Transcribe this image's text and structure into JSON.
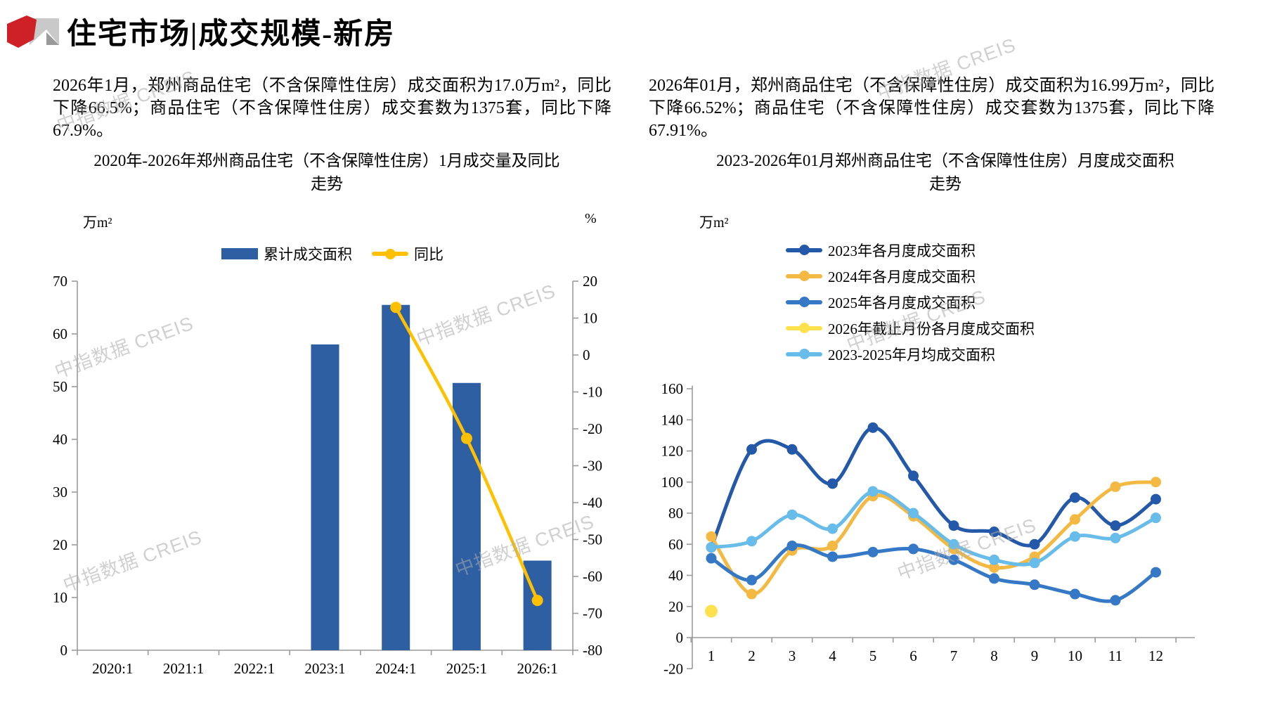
{
  "page": {
    "title": "住宅市场|成交规模-新房",
    "watermark": "中指数据 CREIS",
    "logo_colors": {
      "red": "#ce2127",
      "gray_light": "#c9c9c9",
      "gray_dark": "#9a9a9a"
    }
  },
  "summaries": {
    "left": "2026年1月，郑州商品住宅（不含保障性住房）成交面积为17.0万m²，同比下降66.5%；商品住宅（不含保障性住房）成交套数为1375套，同比下降67.9%。",
    "right": "2026年01月，郑州商品住宅（不含保障性住房）成交面积为16.99万m²，同比下降66.52%；商品住宅（不含保障性住房）成交套数为1375套，同比下降67.91%。"
  },
  "chart_data": [
    {
      "type": "bar",
      "title": "2020年-2026年郑州商品住宅（不含保障性住房）1月成交量及同比走势",
      "title_line1": "2020年-2026年郑州商品住宅（不含保障性住房）1月成交量及同比",
      "title_line2": "走势",
      "unit_left": "万m²",
      "unit_right": "%",
      "categories": [
        "2020:1",
        "2021:1",
        "2022:1",
        "2023:1",
        "2024:1",
        "2025:1",
        "2026:1"
      ],
      "series": [
        {
          "name": "累计成交面积",
          "type": "bar",
          "axis": "left",
          "color": "#2e5fa3",
          "values": [
            null,
            null,
            null,
            58.0,
            65.5,
            50.7,
            17.0
          ]
        },
        {
          "name": "同比",
          "type": "line",
          "axis": "right",
          "color": "#ffc000",
          "values": [
            null,
            null,
            null,
            null,
            12.9,
            -22.6,
            -66.5
          ]
        }
      ],
      "ylim_left": [
        0,
        70
      ],
      "yticks_left": [
        0,
        10,
        20,
        30,
        40,
        50,
        60,
        70
      ],
      "ylim_right": [
        -80,
        20
      ],
      "yticks_right": [
        20,
        10,
        0,
        -10,
        -20,
        -30,
        -40,
        -50,
        -60,
        -70,
        -80
      ],
      "grid": false,
      "legend_position": "top"
    },
    {
      "type": "line",
      "title": "2023-2026年01月郑州商品住宅（不含保障性住房）月度成交面积走势",
      "title_line1": "2023-2026年01月郑州商品住宅（不含保障性住房）月度成交面积",
      "title_line2": "走势",
      "unit": "万m²",
      "x": [
        1,
        2,
        3,
        4,
        5,
        6,
        7,
        8,
        9,
        10,
        11,
        12
      ],
      "series": [
        {
          "name": "2023年各月度成交面积",
          "color": "#2458a8",
          "values": [
            58,
            121,
            121,
            99,
            135,
            104,
            72,
            68,
            60,
            90,
            72,
            89
          ]
        },
        {
          "name": "2024年各月度成交面积",
          "color": "#f4b942",
          "values": [
            65,
            28,
            56,
            59,
            91,
            78,
            57,
            45,
            52,
            76,
            97,
            100
          ]
        },
        {
          "name": "2025年各月度成交面积",
          "color": "#3578c6",
          "values": [
            51,
            37,
            59,
            52,
            55,
            57,
            50,
            38,
            34,
            28,
            24,
            42
          ]
        },
        {
          "name": "2026年截止月份各月度成交面积",
          "color": "#ffe14e",
          "values": [
            17,
            null,
            null,
            null,
            null,
            null,
            null,
            null,
            null,
            null,
            null,
            null
          ]
        },
        {
          "name": "2023-2025年月均成交面积",
          "color": "#67bcea",
          "values": [
            58,
            62,
            79,
            70,
            94,
            80,
            60,
            50,
            48,
            65,
            64,
            77
          ]
        }
      ],
      "ylim": [
        -20,
        160
      ],
      "yticks": [
        -20,
        0,
        20,
        40,
        60,
        80,
        100,
        120,
        140,
        160
      ],
      "grid": false,
      "legend_position": "top"
    }
  ]
}
